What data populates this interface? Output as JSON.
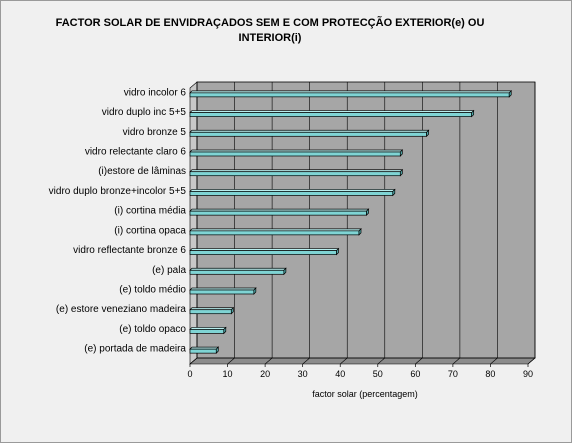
{
  "chart_data": {
    "type": "bar",
    "orientation": "horizontal",
    "title": "FACTOR SOLAR DE ENVIDRAÇADOS SEM E COM PROTECÇÃO EXTERIOR(e) OU INTERIOR(i)",
    "xlabel": "factor solar (percentagem)",
    "ylabel": "",
    "categories": [
      "vidro incolor 6",
      "vidro duplo inc 5+5",
      "vidro bronze 5",
      "vidro relectante claro 6",
      "(i)estore de lâminas",
      "vidro duplo bronze+incolor 5+5",
      "(i) cortina média",
      "(i) cortina opaca",
      "vidro reflectante bronze 6",
      "(e) pala",
      "(e) toldo médio",
      "(e) estore veneziano madeira",
      "(e) toldo opaco",
      "(e) portada de madeira"
    ],
    "values": [
      85,
      75,
      63,
      56,
      56,
      54,
      47,
      45,
      39,
      25,
      17,
      11,
      9,
      7
    ],
    "xlim": [
      0,
      90
    ],
    "xticks": [
      0,
      10,
      20,
      30,
      40,
      50,
      60,
      70,
      80,
      90
    ],
    "grid": true,
    "legend": "none",
    "colors": {
      "plot_background": "#a6a6a6",
      "bar_fill": "#7fd4d4",
      "bar_edge": "#000000",
      "gridline": "#000000",
      "outer_background": "#f0f0f0"
    }
  }
}
